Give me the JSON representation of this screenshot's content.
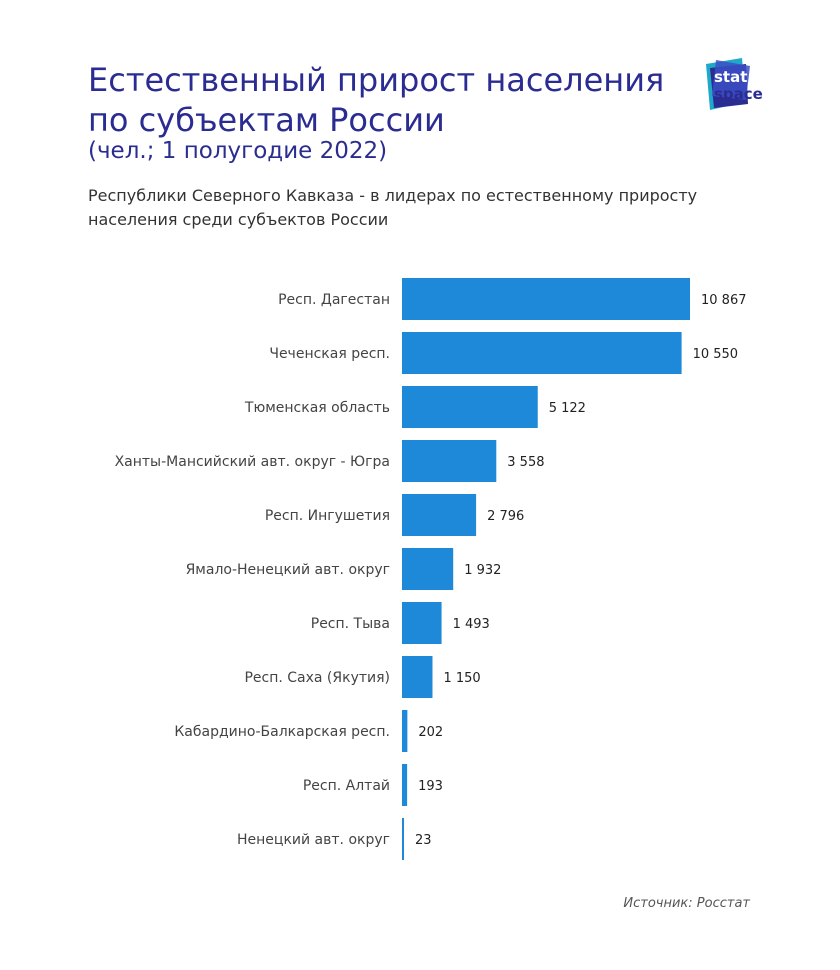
{
  "title": {
    "line1": "Естественный прирост населения",
    "line2": "по субъектам России",
    "unit": "(чел.; 1 полугодие 2022)"
  },
  "subtitle": {
    "line1": "Республики Северного Кавказа - в лидерах по естественному приросту",
    "line2": "населения среди субъектов России"
  },
  "logo": {
    "word1": "stat",
    "word2": "space",
    "colors": [
      "#1fa9c9",
      "#2a2c91",
      "#3b4fc4"
    ]
  },
  "source": "Источник: Росстат",
  "colors": {
    "bar": "#1e88d9",
    "title": "#2a2c91"
  },
  "chart_data": {
    "type": "bar",
    "orientation": "horizontal",
    "categories": [
      "Респ. Дагестан",
      "Чеченская респ.",
      "Тюменская область",
      "Ханты-Мансийский авт. округ - Югра",
      "Респ. Ингушетия",
      "Ямало-Ненецкий авт. округ",
      "Респ. Тыва",
      "Респ. Саха (Якутия)",
      "Кабардино-Балкарская респ.",
      "Респ. Алтай",
      "Ненецкий авт. округ"
    ],
    "values": [
      10867,
      10550,
      5122,
      3558,
      2796,
      1932,
      1493,
      1150,
      202,
      193,
      23
    ],
    "labels": [
      "10 867",
      "10 550",
      "5 122",
      "3 558",
      "2 796",
      "1 932",
      "1 493",
      "1 150",
      "202",
      "193",
      "23"
    ],
    "xlim": [
      0,
      10867
    ],
    "grid": false,
    "legend": "none"
  }
}
